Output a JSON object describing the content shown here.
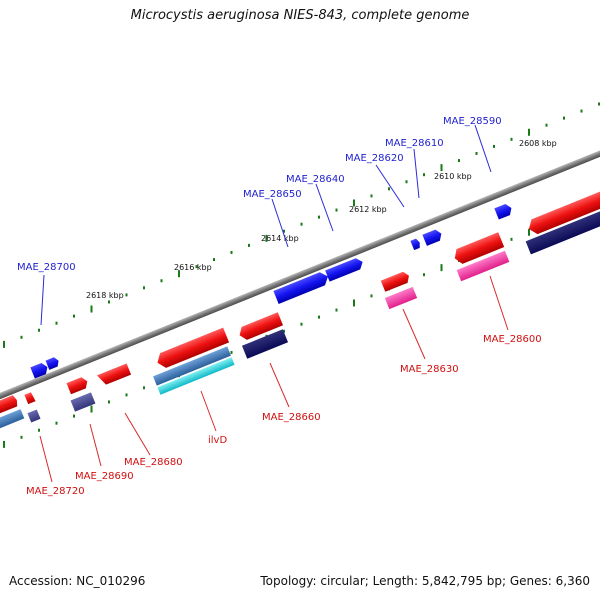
{
  "title": "Microcystis aeruginosa NIES-843, complete genome",
  "footer": {
    "accession": "Accession: NC_010296",
    "info": "Topology: circular; Length: 5,842,795 bp; Genes: 6,360"
  },
  "colors": {
    "forward_gene": "#1f1ff0",
    "reverse_gene": "#f01414",
    "backbone": "#7a7a7a",
    "ticks": "#1a7a1a"
  },
  "scale_labels": [
    "2608 kbp",
    "2610 kbp",
    "2612 kbp",
    "2614 kbp",
    "2616 kbp",
    "2618 kbp"
  ],
  "forward_labels": [
    "MAE_28590",
    "MAE_28610",
    "MAE_28620",
    "MAE_28640",
    "MAE_28650",
    "MAE_28700"
  ],
  "reverse_labels": [
    "MAE_28600",
    "MAE_28630",
    "MAE_28660",
    "ilvD",
    "MAE_28680",
    "MAE_28690",
    "MAE_28720"
  ]
}
